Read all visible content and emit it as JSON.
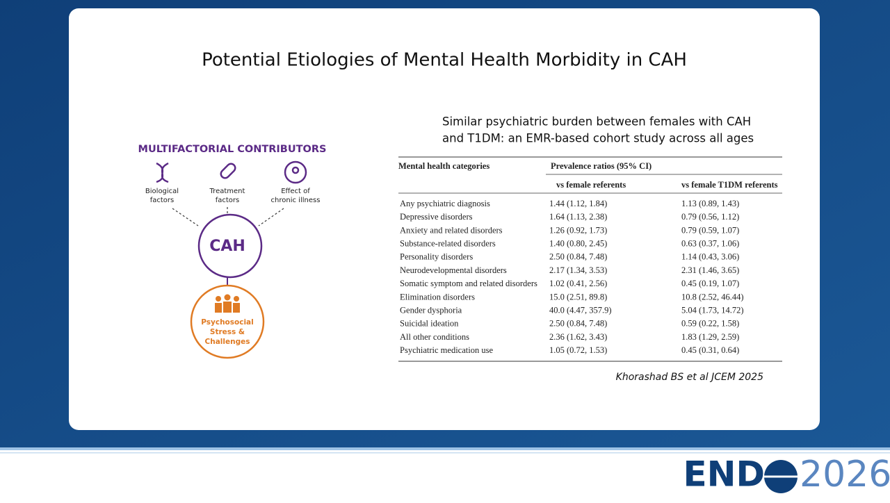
{
  "slide": {
    "title": "Potential Etiologies of Mental Health Morbidity in CAH",
    "diagram": {
      "heading": "MULTIFACTORIAL CONTRIBUTORS",
      "factors": [
        [
          "Biological",
          "factors"
        ],
        [
          "Treatment",
          "factors"
        ],
        [
          "Effect of",
          "chronic illness"
        ]
      ],
      "center": "CAH",
      "outcome": [
        "Psychosocial",
        "Stress &",
        "Challenges"
      ]
    },
    "subtitle": [
      "Similar psychiatric burden between females with CAH",
      "and T1DM: an EMR-based cohort study across all ages"
    ],
    "table": {
      "header": [
        "Mental health categories",
        "Prevalence ratios (95% CI)"
      ],
      "subheader": [
        "vs female referents",
        "vs female T1DM referents"
      ],
      "rows": [
        [
          "Any psychiatric diagnosis",
          "1.44 (1.12, 1.84)",
          "1.13 (0.89, 1.43)"
        ],
        [
          "Depressive disorders",
          "1.64 (1.13, 2.38)",
          "0.79 (0.56, 1.12)"
        ],
        [
          "Anxiety and related disorders",
          "1.26 (0.92, 1.73)",
          "0.79 (0.59, 1.07)"
        ],
        [
          "Substance-related disorders",
          "1.40 (0.80, 2.45)",
          "0.63 (0.37, 1.06)"
        ],
        [
          "Personality disorders",
          "2.50 (0.84, 7.48)",
          "1.14 (0.43, 3.06)"
        ],
        [
          "Neurodevelopmental disorders",
          "2.17 (1.34, 3.53)",
          "2.31 (1.46, 3.65)"
        ],
        [
          "Somatic symptom and related disorders",
          "1.02 (0.41, 2.56)",
          "0.45 (0.19, 1.07)"
        ],
        [
          "Elimination disorders",
          "15.0 (2.51, 89.8)",
          "10.8 (2.52, 46.44)"
        ],
        [
          "Gender dysphoria",
          "40.0 (4.47, 357.9)",
          "5.04 (1.73, 14.72)"
        ],
        [
          "Suicidal ideation",
          "2.50 (0.84, 7.48)",
          "0.59 (0.22, 1.58)"
        ],
        [
          "All other conditions",
          "2.36 (1.62, 3.43)",
          "1.83 (1.29, 2.59)"
        ],
        [
          "Psychiatric medication use",
          "1.05 (0.72, 1.53)",
          "0.45 (0.31, 0.64)"
        ]
      ]
    },
    "citation": "Khorashad BS et al JCEM 2025"
  },
  "footer": {
    "logo_left": "END",
    "logo_right": "2026"
  }
}
